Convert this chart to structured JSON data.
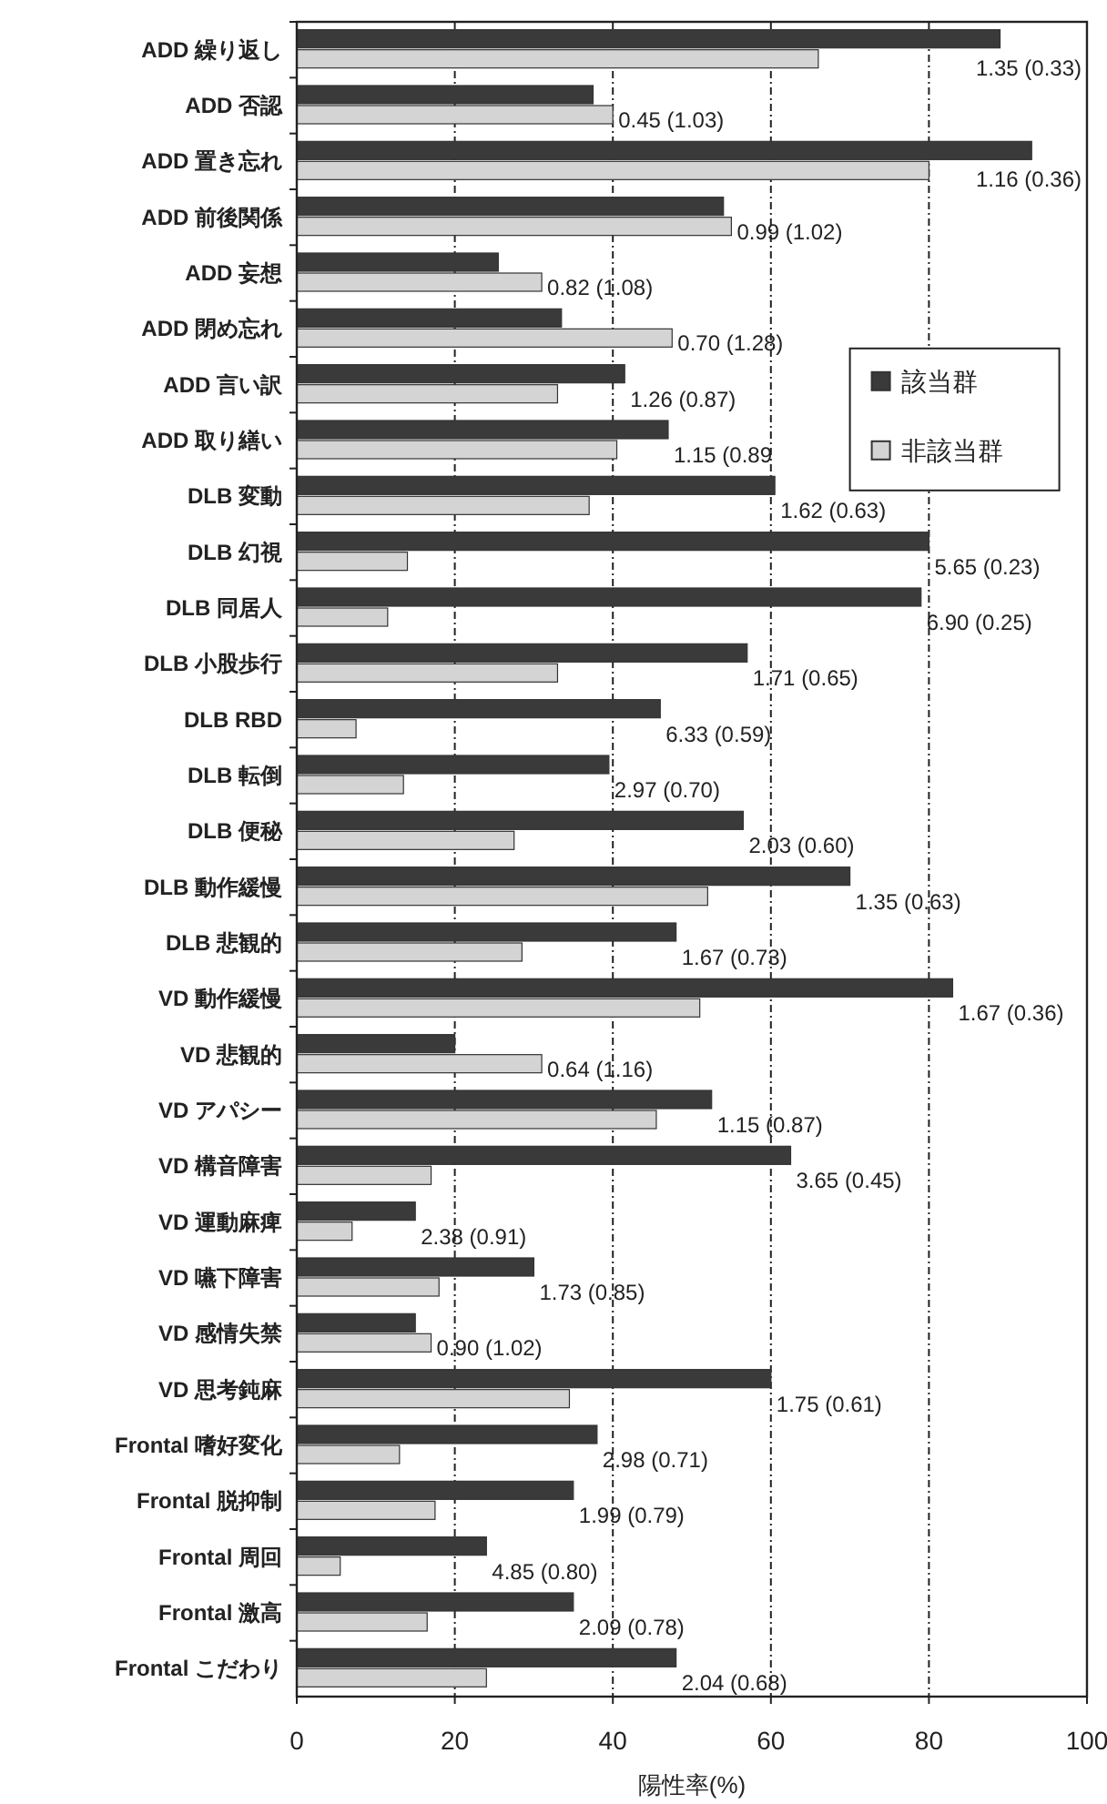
{
  "chart_data": {
    "type": "bar",
    "orientation": "horizontal",
    "xlabel": "陽性率(%)",
    "categories": [
      "ADD 繰り返し",
      "ADD 否認",
      "ADD 置き忘れ",
      "ADD 前後関係",
      "ADD 妄想",
      "ADD 閉め忘れ",
      "ADD 言い訳",
      "ADD 取り繕い",
      "DLB 変動",
      "DLB 幻視",
      "DLB 同居人",
      "DLB 小股歩行",
      "DLB RBD",
      "DLB 転倒",
      "DLB 便秘",
      "DLB 動作緩慢",
      "DLB 悲観的",
      "VD 動作緩慢",
      "VD 悲観的",
      "VD アパシー",
      "VD 構音障害",
      "VD 運動麻痺",
      "VD 嚥下障害",
      "VD 感情失禁",
      "VD 思考鈍麻",
      "Frontal 嗜好変化",
      "Frontal 脱抑制",
      "Frontal 周回",
      "Frontal 激高",
      "Frontal こだわり"
    ],
    "series": [
      {
        "name": "該当群",
        "color": "#3a3a3a",
        "values": [
          89,
          37.5,
          93,
          54,
          25.5,
          33.5,
          41.5,
          47,
          60.5,
          80,
          79,
          57,
          46,
          39.5,
          56.5,
          70,
          48,
          83,
          20,
          52.5,
          62.5,
          15,
          30,
          15,
          60,
          38,
          35,
          24,
          35,
          48
        ]
      },
      {
        "name": "非該当群",
        "color": "#d4d4d4",
        "values": [
          66,
          40,
          80,
          55,
          31,
          47.5,
          33,
          40.5,
          37,
          14,
          11.5,
          33,
          7.5,
          13.5,
          27.5,
          52,
          28.5,
          51,
          31,
          45.5,
          17,
          7,
          18,
          17,
          34.5,
          13,
          17.5,
          5.5,
          16.5,
          24
        ]
      }
    ],
    "xlim": [
      0,
      100
    ],
    "xticks": [
      0,
      20,
      40,
      60,
      80,
      100
    ],
    "grid": "x",
    "legend": "right",
    "annotations": [
      "1.35 (0.33)",
      "0.45 (1.03)",
      "1.16 (0.36)",
      "0.99 (1.02)",
      "0.82 (1.08)",
      "0.70 (1.28)",
      "1.26 (0.87)",
      "1.15 (0.89",
      "1.62 (0.63)",
      "5.65 (0.23)",
      "6.90 (0.25)",
      "1.71 (0.65)",
      "6.33 (0.59)",
      "2.97 (0.70)",
      "2.03 (0.60)",
      "1.35 (0.63)",
      "1.67 (0.73)",
      "1.67 (0.36)",
      "0.64 (1.16)",
      "1.15 (0.87)",
      "3.65 (0.45)",
      "2.38 (0.91)",
      "1.73 (0.85)",
      "0.90 (1.02)",
      "1.75 (0.61)",
      "2.98 (0.71)",
      "1.99 (0.79)",
      "4.85 (0.80)",
      "2.09 (0.78)",
      "2.04 (0.68)"
    ]
  }
}
